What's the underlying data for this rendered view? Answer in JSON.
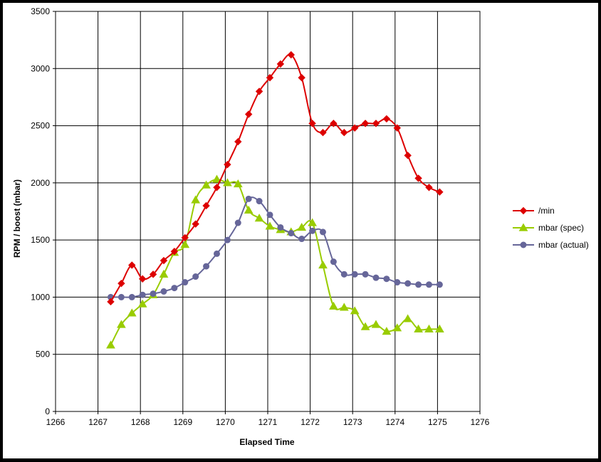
{
  "chart_data": {
    "type": "line",
    "xlabel": "Elapsed Time",
    "ylabel": "RPM / boost (mbar)",
    "xlim": [
      1266,
      1276
    ],
    "ylim": [
      0,
      3500
    ],
    "x_ticks": [
      1266,
      1267,
      1268,
      1269,
      1270,
      1271,
      1272,
      1273,
      1274,
      1275,
      1276
    ],
    "y_ticks": [
      0,
      500,
      1000,
      1500,
      2000,
      2500,
      3000,
      3500
    ],
    "grid": true,
    "legend_position": "right",
    "series": [
      {
        "name": "/min",
        "color": "#dd0000",
        "marker": "diamond",
        "x": [
          1267.3,
          1267.55,
          1267.8,
          1268.05,
          1268.3,
          1268.55,
          1268.8,
          1269.05,
          1269.3,
          1269.55,
          1269.8,
          1270.05,
          1270.3,
          1270.55,
          1270.8,
          1271.05,
          1271.3,
          1271.55,
          1271.8,
          1272.05,
          1272.3,
          1272.55,
          1272.8,
          1273.05,
          1273.3,
          1273.55,
          1273.8,
          1274.05,
          1274.3,
          1274.55,
          1274.8,
          1275.05
        ],
        "y": [
          960,
          1120,
          1280,
          1160,
          1200,
          1320,
          1400,
          1520,
          1640,
          1800,
          1960,
          2160,
          2360,
          2600,
          2800,
          2920,
          3040,
          3120,
          2920,
          2520,
          2440,
          2520,
          2440,
          2480,
          2520,
          2520,
          2560,
          2480,
          2240,
          2040,
          1960,
          1920
        ]
      },
      {
        "name": "mbar (spec)",
        "color": "#99cc00",
        "marker": "triangle",
        "x": [
          1267.3,
          1267.55,
          1267.8,
          1268.05,
          1268.3,
          1268.55,
          1268.8,
          1269.05,
          1269.3,
          1269.55,
          1269.8,
          1270.05,
          1270.3,
          1270.55,
          1270.8,
          1271.05,
          1271.3,
          1271.55,
          1271.8,
          1272.05,
          1272.3,
          1272.55,
          1272.8,
          1273.05,
          1273.3,
          1273.55,
          1273.8,
          1274.05,
          1274.3,
          1274.55,
          1274.8,
          1275.05
        ],
        "y": [
          580,
          760,
          860,
          940,
          1020,
          1200,
          1390,
          1460,
          1850,
          1980,
          2030,
          2000,
          1990,
          1760,
          1690,
          1620,
          1590,
          1570,
          1610,
          1650,
          1280,
          920,
          910,
          880,
          740,
          760,
          700,
          730,
          810,
          720,
          720,
          720
        ]
      },
      {
        "name": "mbar (actual)",
        "color": "#666699",
        "marker": "circle",
        "x": [
          1267.3,
          1267.55,
          1267.8,
          1268.05,
          1268.3,
          1268.55,
          1268.8,
          1269.05,
          1269.3,
          1269.55,
          1269.8,
          1270.05,
          1270.3,
          1270.55,
          1270.8,
          1271.05,
          1271.3,
          1271.55,
          1271.8,
          1272.05,
          1272.3,
          1272.55,
          1272.8,
          1273.05,
          1273.3,
          1273.55,
          1273.8,
          1274.05,
          1274.3,
          1274.55,
          1274.8,
          1275.05
        ],
        "y": [
          1000,
          1000,
          1000,
          1020,
          1030,
          1050,
          1080,
          1130,
          1180,
          1270,
          1380,
          1500,
          1650,
          1860,
          1840,
          1720,
          1610,
          1560,
          1510,
          1580,
          1570,
          1310,
          1200,
          1200,
          1200,
          1170,
          1160,
          1130,
          1120,
          1110,
          1110,
          1110
        ]
      }
    ]
  }
}
